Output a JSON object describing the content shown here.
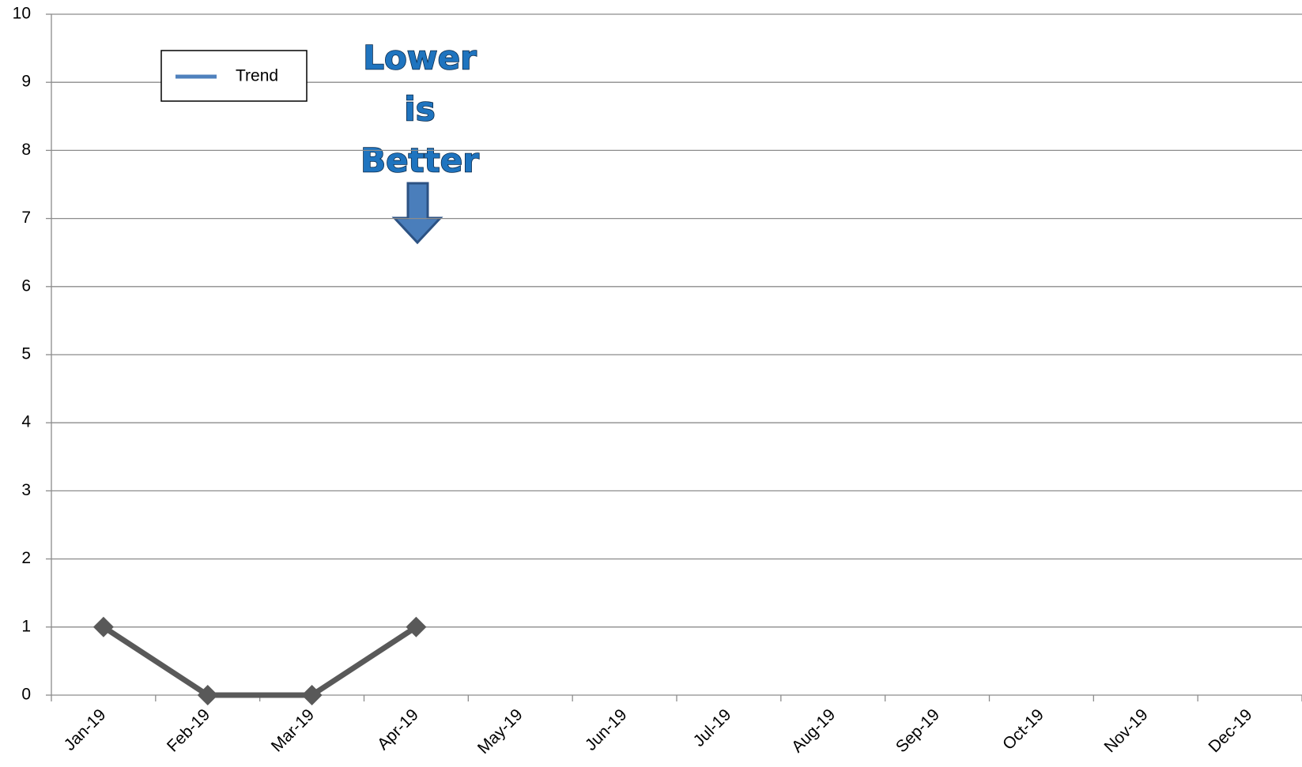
{
  "chart_data": {
    "type": "line",
    "categories": [
      "Jan-19",
      "Feb-19",
      "Mar-19",
      "Apr-19",
      "May-19",
      "Jun-19",
      "Jul-19",
      "Aug-19",
      "Sep-19",
      "Oct-19",
      "Nov-19",
      "Dec-19"
    ],
    "series": [
      {
        "name": "Trend",
        "color": "#595959",
        "legend_color": "#4f81bd",
        "values": [
          1,
          0,
          0,
          1,
          null,
          null,
          null,
          null,
          null,
          null,
          null,
          null
        ]
      }
    ],
    "ylim": [
      0,
      10
    ],
    "yticks": [
      0,
      1,
      2,
      3,
      4,
      5,
      6,
      7,
      8,
      9,
      10
    ],
    "grid": true,
    "legend": "top-left",
    "annotation": [
      "Lower",
      "is",
      "Better"
    ]
  }
}
